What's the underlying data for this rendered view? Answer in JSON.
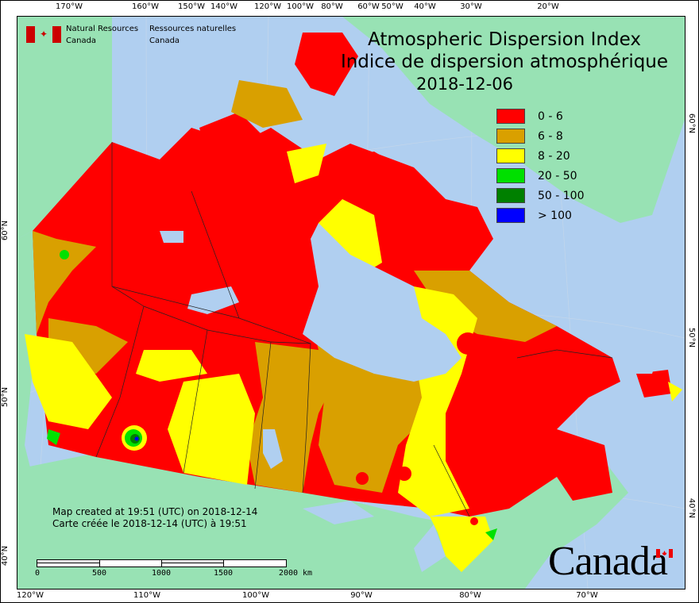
{
  "title": {
    "line1": "Atmospheric Dispersion Index",
    "line2": "Indice de dispersion atmosphérique",
    "date": "2018-12-06"
  },
  "agency": {
    "en_line1": "Natural Resources",
    "en_line2": "Canada",
    "fr_line1": "Ressources naturelles",
    "fr_line2": "Canada"
  },
  "legend": [
    {
      "label": "0 - 6",
      "color": "#ff0000"
    },
    {
      "label": "6 - 8",
      "color": "#d9a000"
    },
    {
      "label": "8 - 20",
      "color": "#ffff00"
    },
    {
      "label": "20 - 50",
      "color": "#00e000"
    },
    {
      "label": "50 - 100",
      "color": "#008000"
    },
    {
      "label": "> 100",
      "color": "#0000ff"
    }
  ],
  "credit": {
    "en": "Map created at 19:51 (UTC) on 2018-12-14",
    "fr": "Carte créée le 2018-12-14 (UTC) à 19:51"
  },
  "scale_bar": {
    "labels": [
      "0",
      "500",
      "1000",
      "1500",
      "2000 km"
    ]
  },
  "axes": {
    "top": [
      "170°W",
      "160°W",
      "150°W",
      "140°W",
      "120°W",
      "100°W",
      "80°W",
      "60°W",
      "50°W",
      "40°W",
      "30°W",
      "20°W"
    ],
    "bottom": [
      "120°W",
      "110°W",
      "100°W",
      "90°W",
      "80°W",
      "70°W"
    ],
    "left": [
      "60°N",
      "50°N",
      "40°N"
    ],
    "right": [
      "60°N",
      "50°N",
      "40°N"
    ]
  },
  "wordmark": "Canada",
  "colors": {
    "ocean": "#b0cff0",
    "land": "#98e2b4"
  }
}
